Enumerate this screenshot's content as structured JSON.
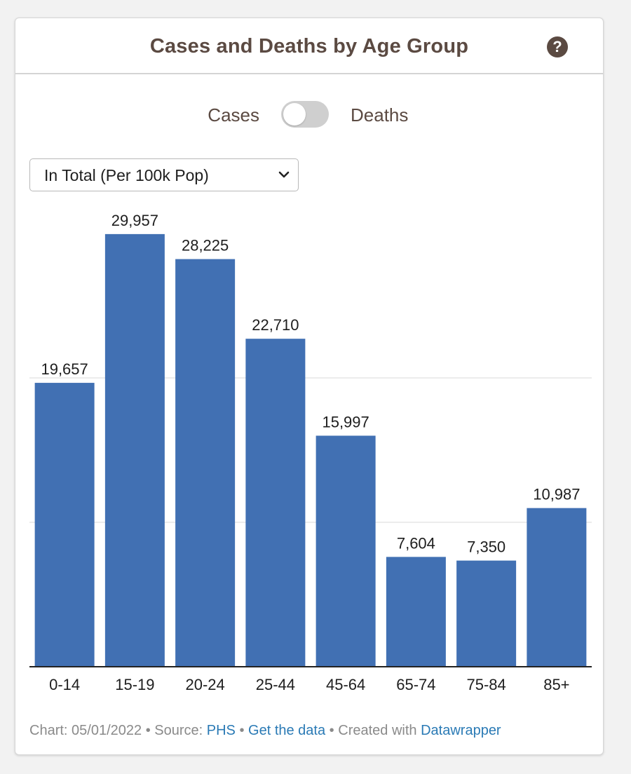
{
  "header": {
    "title": "Cases and Deaths by Age Group",
    "help_icon": "question-circle-icon"
  },
  "toggle": {
    "left_label": "Cases",
    "right_label": "Deaths",
    "state": "Cases"
  },
  "metric_select": {
    "selected": "In Total (Per 100k Pop)",
    "icon": "chevron-down-icon"
  },
  "colors": {
    "bar": "#4170b3",
    "title": "#5b4a42",
    "link": "#2a7ab5",
    "grid": "#e6e6e6"
  },
  "chart_data": {
    "type": "bar",
    "categories": [
      "0-14",
      "15-19",
      "20-24",
      "25-44",
      "45-64",
      "65-74",
      "75-84",
      "85+"
    ],
    "values": [
      19657,
      29957,
      28225,
      22710,
      15997,
      7604,
      7350,
      10987
    ],
    "value_labels": [
      "19,657",
      "29,957",
      "28,225",
      "22,710",
      "15,997",
      "7,604",
      "7,350",
      "10,987"
    ],
    "ylim": [
      0,
      30000
    ],
    "gridlines": [
      10000,
      20000
    ],
    "xlabel": "",
    "ylabel": ""
  },
  "footer": {
    "chart_date": "Chart: 05/01/2022",
    "sep": "•",
    "source_prefix": "Source:",
    "source_link": "PHS",
    "data_link": "Get the data",
    "created_prefix": "Created with",
    "created_link": "Datawrapper"
  }
}
